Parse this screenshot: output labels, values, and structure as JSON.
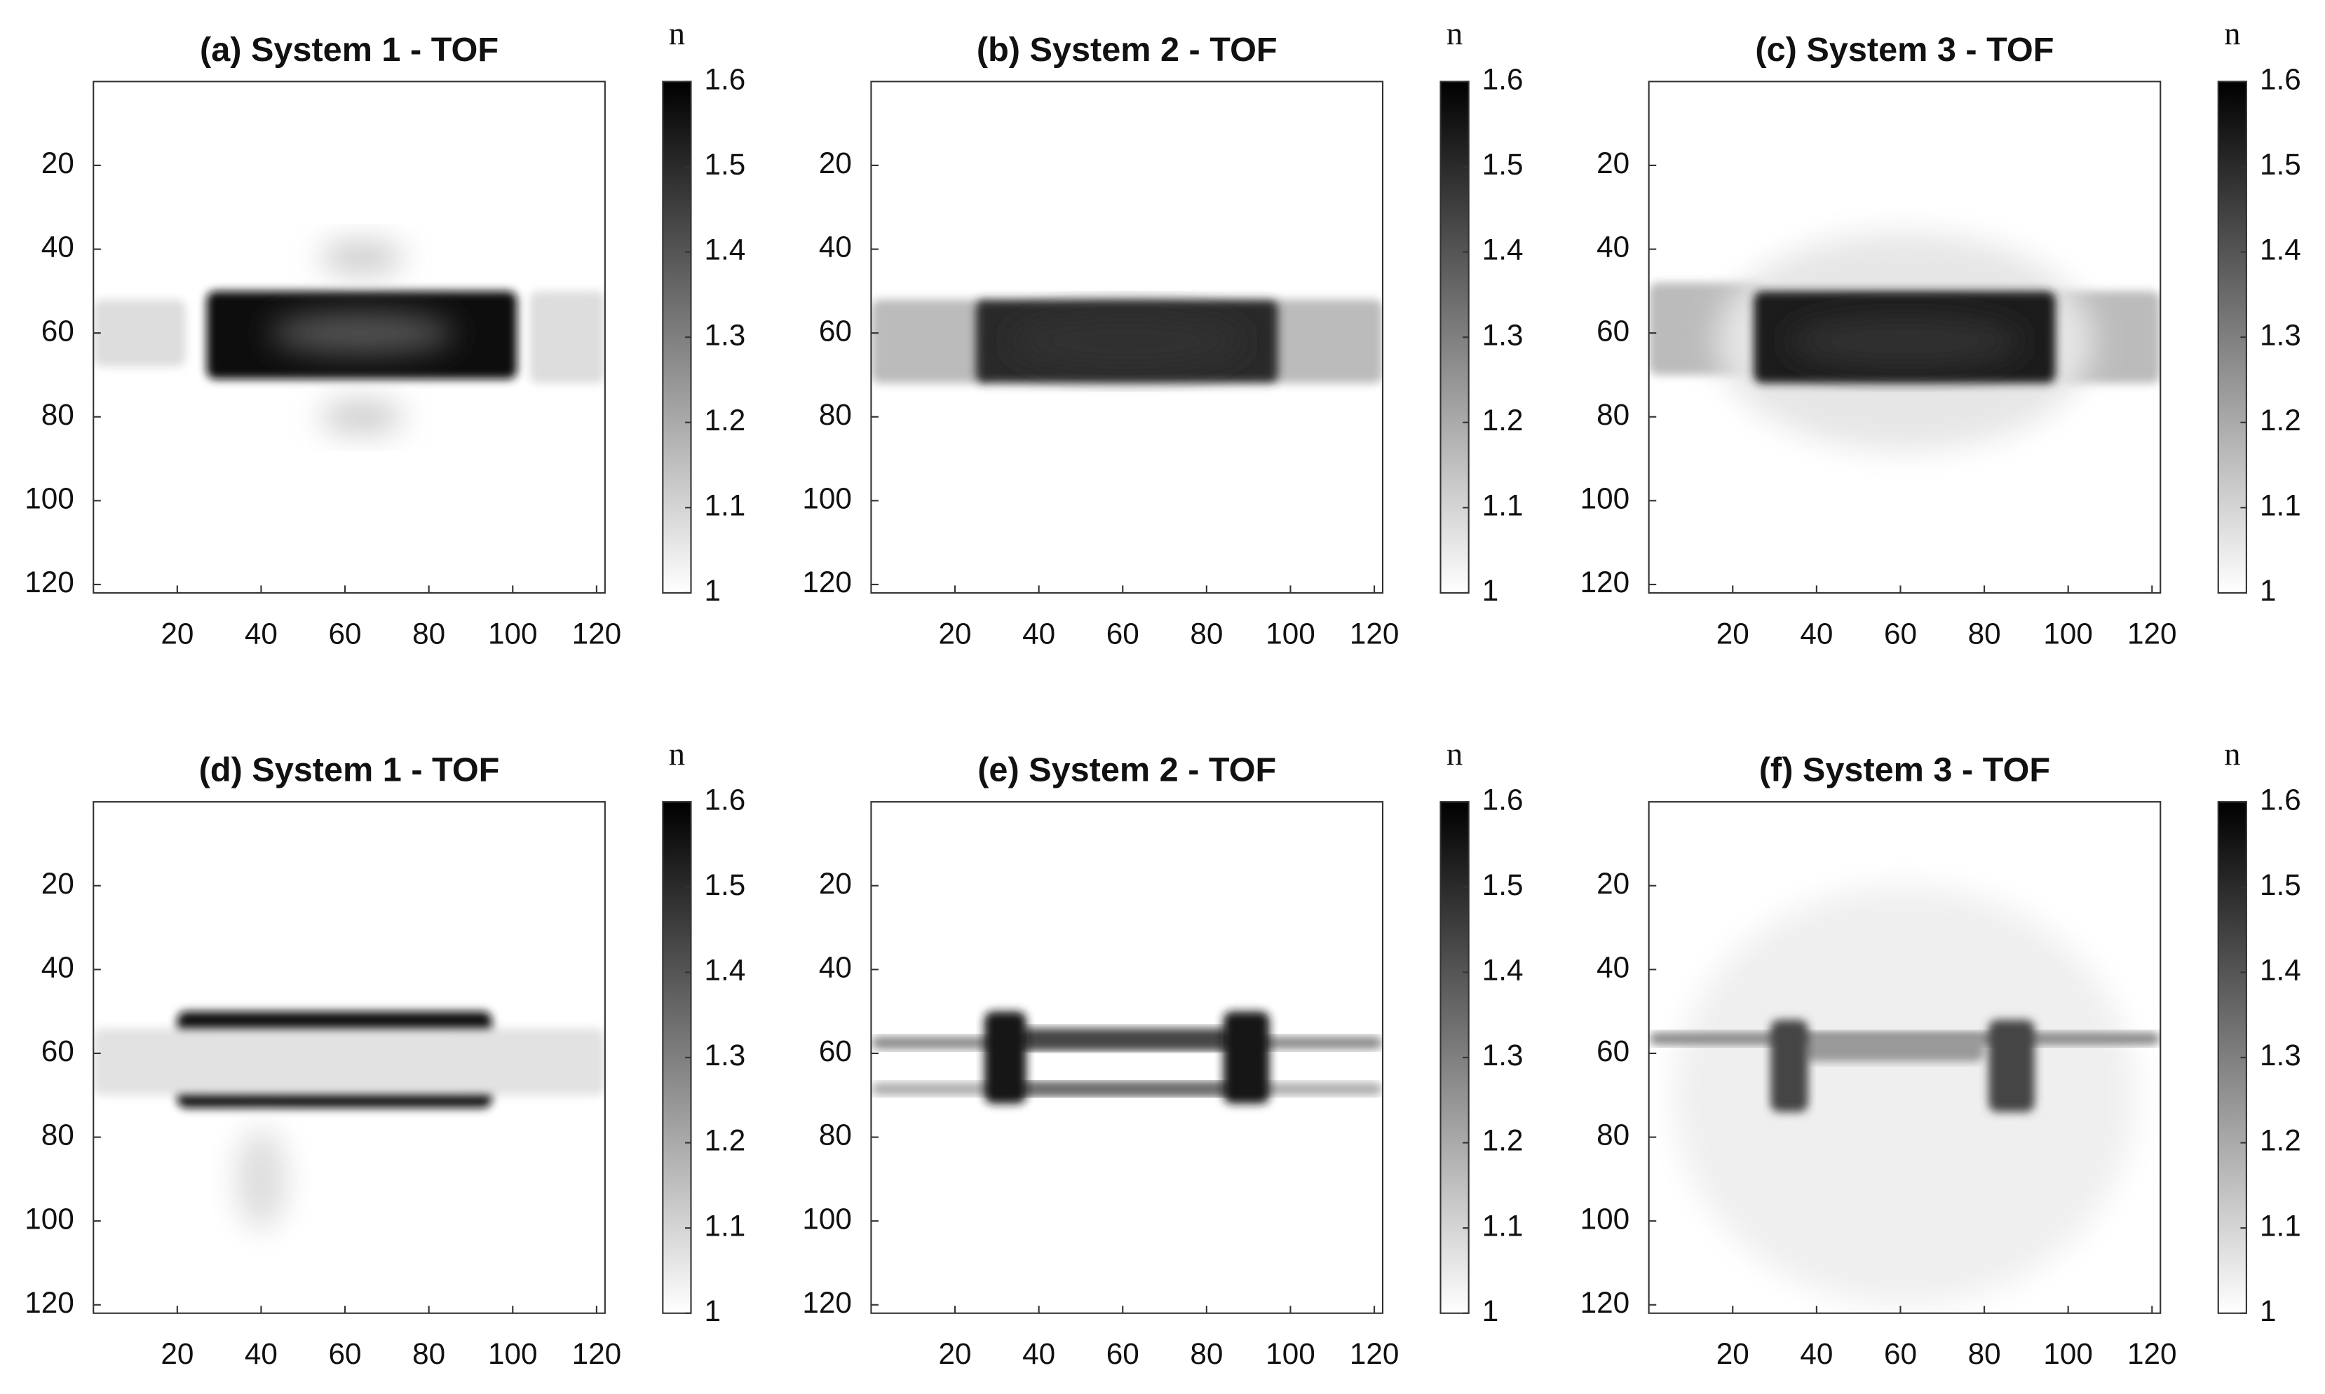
{
  "chart_data": [
    {
      "type": "heatmap",
      "title": "(a) System 1 - TOF",
      "xlim": [
        0,
        122
      ],
      "ylim": [
        0,
        122
      ],
      "yreverse": true,
      "xticks": [
        20,
        40,
        60,
        80,
        100,
        120
      ],
      "yticks": [
        20,
        40,
        60,
        80,
        100,
        120
      ],
      "colorbar": {
        "label": "n",
        "lim": [
          1,
          1.6
        ],
        "ticks": [
          1,
          1.1,
          1.2,
          1.3,
          1.4,
          1.5,
          1.6
        ]
      },
      "colormap": [
        "#ffffff",
        "#000000"
      ]
    },
    {
      "type": "heatmap",
      "title": "(b) System 2 - TOF",
      "xlim": [
        0,
        122
      ],
      "ylim": [
        0,
        122
      ],
      "yreverse": true,
      "xticks": [
        20,
        40,
        60,
        80,
        100,
        120
      ],
      "yticks": [
        20,
        40,
        60,
        80,
        100,
        120
      ],
      "colorbar": {
        "label": "n",
        "lim": [
          1,
          1.6
        ],
        "ticks": [
          1,
          1.1,
          1.2,
          1.3,
          1.4,
          1.5,
          1.6
        ]
      },
      "colormap": [
        "#ffffff",
        "#000000"
      ]
    },
    {
      "type": "heatmap",
      "title": "(c) System 3 - TOF",
      "xlim": [
        0,
        122
      ],
      "ylim": [
        0,
        122
      ],
      "yreverse": true,
      "xticks": [
        20,
        40,
        60,
        80,
        100,
        120
      ],
      "yticks": [
        20,
        40,
        60,
        80,
        100,
        120
      ],
      "colorbar": {
        "label": "n",
        "lim": [
          1,
          1.6
        ],
        "ticks": [
          1,
          1.1,
          1.2,
          1.3,
          1.4,
          1.5,
          1.6
        ]
      },
      "colormap": [
        "#ffffff",
        "#000000"
      ]
    },
    {
      "type": "heatmap",
      "title": "(d) System 1 - TOF",
      "xlim": [
        0,
        122
      ],
      "ylim": [
        0,
        122
      ],
      "yreverse": true,
      "xticks": [
        20,
        40,
        60,
        80,
        100,
        120
      ],
      "yticks": [
        20,
        40,
        60,
        80,
        100,
        120
      ],
      "colorbar": {
        "label": "n",
        "lim": [
          1,
          1.6
        ],
        "ticks": [
          1,
          1.1,
          1.2,
          1.3,
          1.4,
          1.5,
          1.6
        ]
      },
      "colormap": [
        "#ffffff",
        "#000000"
      ]
    },
    {
      "type": "heatmap",
      "title": "(e) System 2 - TOF",
      "xlim": [
        0,
        122
      ],
      "ylim": [
        0,
        122
      ],
      "yreverse": true,
      "xticks": [
        20,
        40,
        60,
        80,
        100,
        120
      ],
      "yticks": [
        20,
        40,
        60,
        80,
        100,
        120
      ],
      "colorbar": {
        "label": "n",
        "lim": [
          1,
          1.6
        ],
        "ticks": [
          1,
          1.1,
          1.2,
          1.3,
          1.4,
          1.5,
          1.6
        ]
      },
      "colormap": [
        "#ffffff",
        "#000000"
      ]
    },
    {
      "type": "heatmap",
      "title": "(f) System 3 - TOF",
      "xlim": [
        0,
        122
      ],
      "ylim": [
        0,
        122
      ],
      "yreverse": true,
      "xticks": [
        20,
        40,
        60,
        80,
        100,
        120
      ],
      "yticks": [
        20,
        40,
        60,
        80,
        100,
        120
      ],
      "colorbar": {
        "label": "n",
        "lim": [
          1,
          1.6
        ],
        "ticks": [
          1,
          1.1,
          1.2,
          1.3,
          1.4,
          1.5,
          1.6
        ]
      },
      "colormap": [
        "#ffffff",
        "#000000"
      ]
    }
  ]
}
